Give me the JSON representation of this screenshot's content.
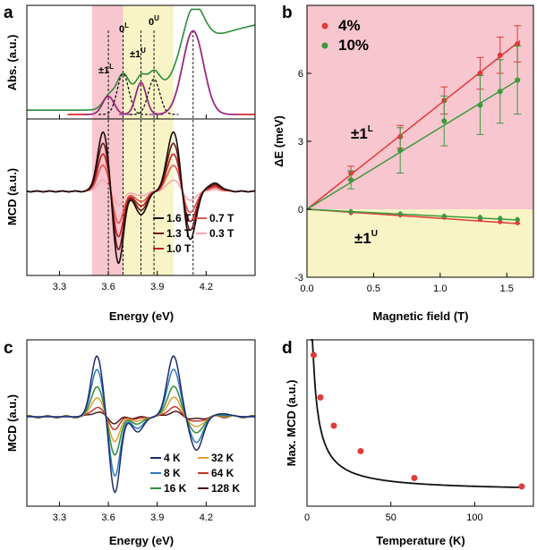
{
  "colors": {
    "pink_band": "#f7c6cf",
    "yellow_band": "#f8f4c6",
    "abs_green": "#2e8b3a",
    "abs_red": "#d42a2a",
    "gauss_purple": "#8a2aa0",
    "red_marker": "#e03a3a",
    "green_marker": "#3c9a3c"
  },
  "chart_data": [
    {
      "panel": "a",
      "type": "line",
      "xlabel": "Energy (eV)",
      "ylabel_top": "Abs. (a.u.)",
      "ylabel_bottom": "MCD (a.u.)",
      "xlim": [
        3.1,
        4.5
      ],
      "x_ticks": [
        "3.3",
        "3.6",
        "3.9",
        "4.2"
      ],
      "x_tick_values": [
        3.3,
        3.6,
        3.9,
        4.2
      ],
      "shaded_regions": [
        {
          "from": 3.5,
          "to": 3.69,
          "color": "pink"
        },
        {
          "from": 3.69,
          "to": 4.0,
          "color": "yellow"
        }
      ],
      "annotations": {
        "pm1L": "±1",
        "pm1L_sup": "L",
        "zeroL": "0",
        "zeroL_sup": "L",
        "pm1U": "±1",
        "pm1U_sup": "U",
        "zeroU": "0",
        "zeroU_sup": "U"
      },
      "dashed_lines_x": [
        3.6,
        3.69,
        3.8,
        3.88,
        4.12
      ],
      "abs_gaussians": [
        {
          "center": 3.6,
          "width": 0.05,
          "height": 0.17,
          "color": "#d42a2a"
        },
        {
          "center": 3.69,
          "width": 0.05,
          "height": 0.38,
          "color": "#111111",
          "dashed": true
        },
        {
          "center": 3.8,
          "width": 0.045,
          "height": 0.3,
          "color": "#d42a2a"
        },
        {
          "center": 3.88,
          "width": 0.05,
          "height": 0.33,
          "color": "#111111",
          "dashed": true
        },
        {
          "center": 4.12,
          "width": 0.09,
          "height": 0.78,
          "color": "#d42a2a"
        }
      ],
      "mcd_series": [
        {
          "name": "1.6 T",
          "scale": 1.0,
          "color": "#1a0a0a"
        },
        {
          "name": "1.3 T",
          "scale": 0.81,
          "color": "#6b1a1a"
        },
        {
          "name": "1.0 T",
          "scale": 0.63,
          "color": "#c01e1e"
        },
        {
          "name": "0.7 T",
          "scale": 0.44,
          "color": "#e05656"
        },
        {
          "name": "0.3 T",
          "scale": 0.19,
          "color": "#f2a8b0"
        }
      ],
      "legend_order": [
        "1.6 T",
        "0.7 T",
        "1.3 T",
        "0.3 T",
        "1.0 T"
      ]
    },
    {
      "panel": "b",
      "type": "scatter",
      "xlabel": "Magnetic field (T)",
      "ylabel": "ΔE (meV)",
      "xlim": [
        0.0,
        1.7
      ],
      "ylim": [
        -3,
        9
      ],
      "x_ticks": [
        "0.0",
        "0.5",
        "1.0",
        "1.5"
      ],
      "x_tick_values": [
        0.0,
        0.5,
        1.0,
        1.5
      ],
      "y_ticks": [
        "-3",
        "0",
        "3",
        "6"
      ],
      "y_tick_values": [
        -3,
        0,
        3,
        6
      ],
      "labels": {
        "upper": "±1",
        "upper_sup": "L",
        "lower": "±1",
        "lower_sup": "U"
      },
      "series": [
        {
          "name": "4%",
          "color": "#e03a3a",
          "x": [
            0.33,
            0.7,
            1.03,
            1.3,
            1.45,
            1.58
          ],
          "y": [
            1.6,
            3.2,
            4.8,
            6.0,
            6.8,
            7.3
          ],
          "err": [
            0.3,
            0.5,
            0.6,
            0.7,
            0.8,
            0.8
          ],
          "lower_y": [
            -0.15,
            -0.25,
            -0.35,
            -0.45,
            -0.55,
            -0.6
          ],
          "fit_slope_upper": 4.65,
          "fit_slope_lower": -0.4
        },
        {
          "name": "10%",
          "color": "#3c9a3c",
          "x": [
            0.33,
            0.7,
            1.03,
            1.3,
            1.45,
            1.58
          ],
          "y": [
            1.3,
            2.6,
            3.9,
            4.6,
            5.2,
            5.7
          ],
          "err": [
            0.4,
            1.0,
            1.1,
            1.3,
            1.4,
            1.5
          ],
          "lower_y": [
            -0.1,
            -0.2,
            -0.3,
            -0.35,
            -0.4,
            -0.45
          ],
          "fit_slope_upper": 3.6,
          "fit_slope_lower": -0.3
        }
      ]
    },
    {
      "panel": "c",
      "type": "line",
      "xlabel": "Energy (eV)",
      "ylabel": "MCD (a.u.)",
      "xlim": [
        3.1,
        4.5
      ],
      "x_ticks": [
        "3.3",
        "3.6",
        "3.9",
        "4.2"
      ],
      "x_tick_values": [
        3.3,
        3.6,
        3.9,
        4.2
      ],
      "series": [
        {
          "name": "4 K",
          "scale": 1.0,
          "color": "#1f2a6b"
        },
        {
          "name": "8 K",
          "scale": 0.78,
          "color": "#2a7bc0"
        },
        {
          "name": "16 K",
          "scale": 0.5,
          "color": "#2e8b3a"
        },
        {
          "name": "32 K",
          "scale": 0.32,
          "color": "#e0a030"
        },
        {
          "name": "64 K",
          "scale": 0.16,
          "color": "#c0392b"
        },
        {
          "name": "128 K",
          "scale": 0.08,
          "color": "#4a1a1a"
        }
      ],
      "legend_order": [
        "4 K",
        "32 K",
        "8 K",
        "64 K",
        "16 K",
        "128 K"
      ]
    },
    {
      "panel": "d",
      "type": "scatter",
      "xlabel": "Temperature (K)",
      "ylabel": "Max. MCD (a.u.)",
      "xlim": [
        0,
        135
      ],
      "x_ticks": [
        "0",
        "50",
        "100"
      ],
      "x_tick_values": [
        0,
        50,
        100
      ],
      "x": [
        4,
        8,
        16,
        32,
        64,
        128
      ],
      "y": [
        1.0,
        0.7,
        0.5,
        0.32,
        0.13,
        0.07
      ],
      "fit": "a/T + b",
      "color": "#e03a3a"
    }
  ]
}
